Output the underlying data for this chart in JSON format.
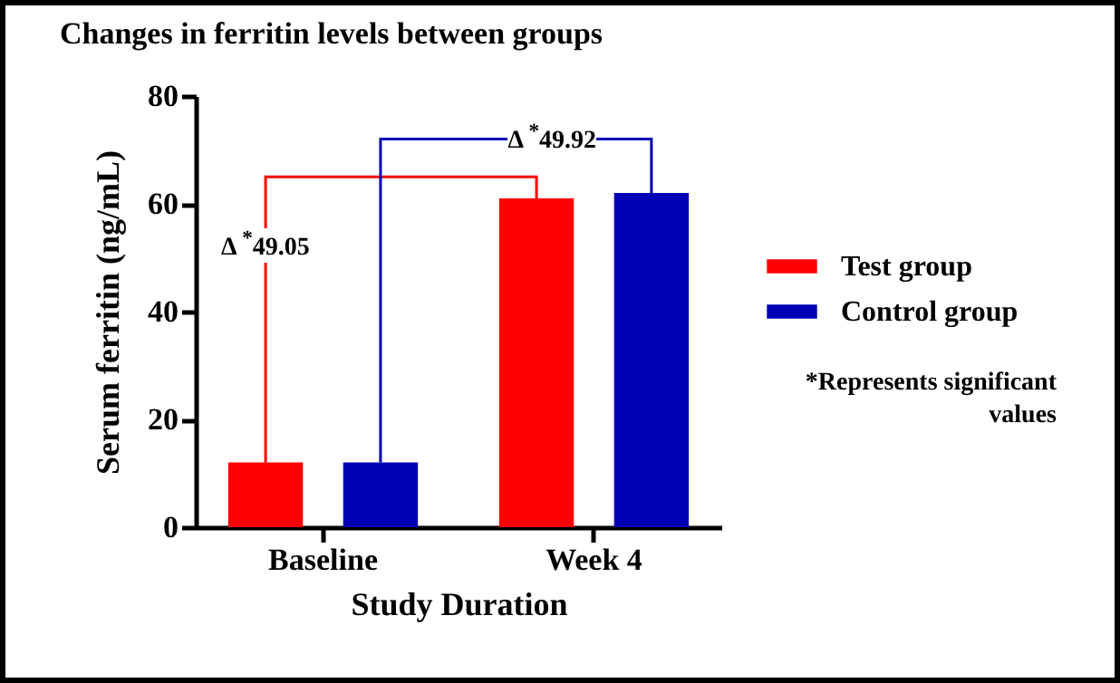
{
  "chart_data": {
    "type": "bar",
    "title": "Changes in ferritin levels between groups",
    "xlabel": "Study Duration",
    "ylabel": "Serum ferritin (ng/mL)",
    "categories": [
      "Baseline",
      "Week 4"
    ],
    "series": [
      {
        "name": "Test group",
        "color": "#ff0000",
        "values": [
          12,
          61
        ]
      },
      {
        "name": "Control group",
        "color": "#0000b4",
        "values": [
          12,
          62
        ]
      }
    ],
    "ylim": [
      0,
      80
    ],
    "yticks": [
      0,
      20,
      40,
      60,
      80
    ],
    "grid": false,
    "legend": "right",
    "annotations": [
      "Δ $^{*}$49.05",
      "Δ $^{*}$49.92",
      "*Represents significant values"
    ]
  }
}
